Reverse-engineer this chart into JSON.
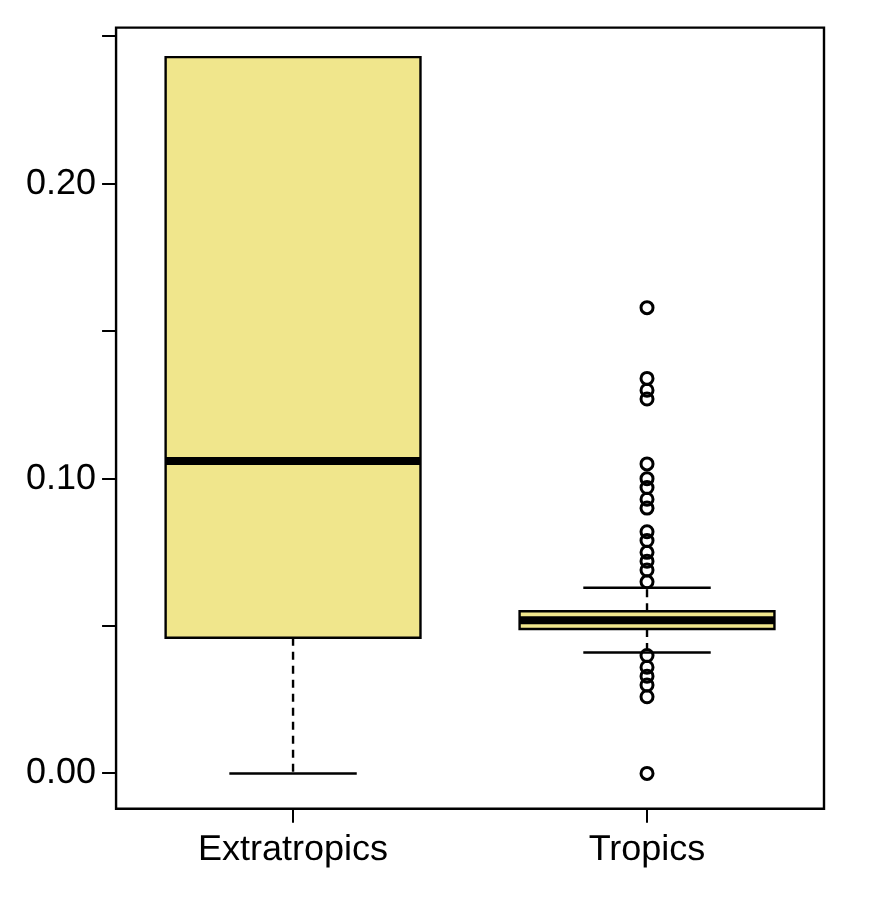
{
  "chart_data": {
    "type": "box",
    "categories": [
      "Extratropics",
      "Tropics"
    ],
    "colors": [
      "#f0e68c",
      "#f0e68c"
    ],
    "boxes": [
      {
        "low": 0,
        "q1": 0.046,
        "median": 0.106,
        "q3": 0.243,
        "high": 0.243
      },
      {
        "low": 0.041,
        "q1": 0.049,
        "median": 0.052,
        "q3": 0.055,
        "high": 0.063,
        "outliers": [
          0.158,
          0.134,
          0.13,
          0.127,
          0.105,
          0.1,
          0.097,
          0.093,
          0.09,
          0.082,
          0.079,
          0.075,
          0.072,
          0.069,
          0.065,
          0.04,
          0.036,
          0.033,
          0.03,
          0.026,
          0
        ]
      }
    ],
    "ylim": [
      -0.012,
      0.253
    ],
    "yticks": [
      {
        "value": 0,
        "label": "0.00"
      },
      {
        "value": 0.05,
        "label": null
      },
      {
        "value": 0.1,
        "label": "0.10"
      },
      {
        "value": 0.15,
        "label": null
      },
      {
        "value": 0.2,
        "label": "0.20"
      },
      {
        "value": 0.25,
        "label": null
      }
    ],
    "grid": false,
    "legend": false
  }
}
